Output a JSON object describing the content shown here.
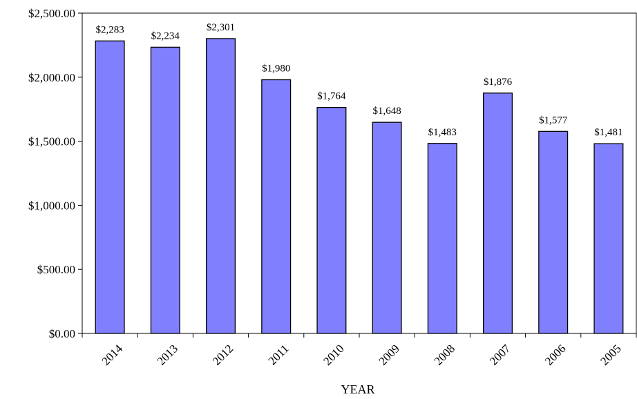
{
  "chart_data": {
    "type": "bar",
    "title": "",
    "xlabel": "YEAR",
    "ylabel": "",
    "categories": [
      "2014",
      "2013",
      "2012",
      "2011",
      "2010",
      "2009",
      "2008",
      "2007",
      "2006",
      "2005"
    ],
    "values": [
      2283,
      2234,
      2301,
      1980,
      1764,
      1648,
      1483,
      1876,
      1577,
      1481
    ],
    "data_labels": [
      "$2,283",
      "$2,234",
      "$2,301",
      "$1,980",
      "$1,764",
      "$1,648",
      "$1,483",
      "$1,876",
      "$1,577",
      "$1,481"
    ],
    "ylim": [
      0,
      2500
    ],
    "yticks": [
      0,
      500,
      1000,
      1500,
      2000,
      2500
    ],
    "ytick_labels": [
      "$0.00",
      "$500.00",
      "$1,000.00",
      "$1,500.00",
      "$2,000.00",
      "$2,500.00"
    ],
    "grid": false,
    "legend": "none",
    "colors": {
      "bar_fill": "#8080ff",
      "bar_stroke": "#000000",
      "axis": "#000000"
    }
  }
}
